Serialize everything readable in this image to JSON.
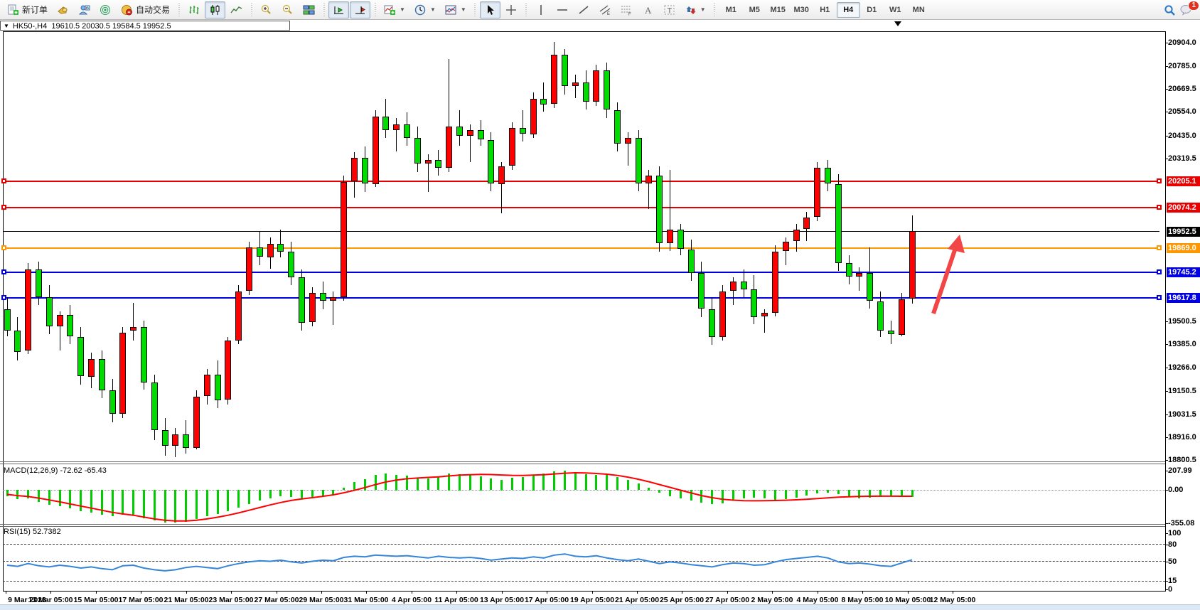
{
  "toolbar": {
    "new_order_label": "新订单",
    "autotrading_label": "自动交易",
    "timeframes": [
      "M1",
      "M5",
      "M15",
      "M30",
      "H1",
      "H4",
      "D1",
      "W1",
      "MN"
    ],
    "active_timeframe": "H4",
    "notification_count": "1"
  },
  "chart_header": {
    "symbol_period": "HK50-,H4",
    "ohlc_text": "19610.5 20030.5 19584.5 19952.5"
  },
  "indicators": {
    "macd_label": "MACD(12,26,9) -72.62 -65.43",
    "rsi_label": "RSI(15) 52.7382"
  },
  "colors": {
    "bull": "#ff0000",
    "bear": "#00dc00",
    "macd_hist": "#00cc00",
    "macd_signal": "#ff0000",
    "rsi_line": "#3585d8",
    "arrow": "#f24545",
    "current_price_line": "#000000"
  },
  "chart_data": {
    "type": "candlestick",
    "symbol": "HK50-",
    "period": "H4",
    "last_bar": {
      "open": 19610.5,
      "high": 20030.5,
      "low": 19584.5,
      "close": 19952.5
    },
    "current_price": 19952.5,
    "current_price_label": "19952.5",
    "price_axis_ticks": [
      {
        "v": 20904.0,
        "t": "20904.0"
      },
      {
        "v": 20785.0,
        "t": "20785.0"
      },
      {
        "v": 20669.5,
        "t": "20669.5"
      },
      {
        "v": 20554.0,
        "t": "20554.0"
      },
      {
        "v": 20435.0,
        "t": "20435.0"
      },
      {
        "v": 20319.5,
        "t": "20319.5"
      },
      {
        "v": 19500.5,
        "t": "19500.5"
      },
      {
        "v": 19385.0,
        "t": "19385.0"
      },
      {
        "v": 19266.0,
        "t": "19266.0"
      },
      {
        "v": 19150.5,
        "t": "19150.5"
      },
      {
        "v": 19031.5,
        "t": "19031.5"
      },
      {
        "v": 18916.0,
        "t": "18916.0"
      },
      {
        "v": 18800.5,
        "t": "18800.5"
      }
    ],
    "horizontal_lines": [
      {
        "value": 20205.1,
        "label": "20205.1",
        "color": "#e80000"
      },
      {
        "value": 20074.2,
        "label": "20074.2",
        "color": "#e80000"
      },
      {
        "value": 19869.0,
        "label": "19869.0",
        "color": "#ff9800"
      },
      {
        "value": 19745.2,
        "label": "19745.2",
        "color": "#0000e0"
      },
      {
        "value": 19617.8,
        "label": "19617.8",
        "color": "#0000e0"
      }
    ],
    "time_axis_labels": [
      "9 Mar 2023",
      "13 Mar 05:00",
      "15 Mar 05:00",
      "17 Mar 05:00",
      "21 Mar 05:00",
      "23 Mar 05:00",
      "27 Mar 05:00",
      "29 Mar 05:00",
      "31 Mar 05:00",
      "4 Apr 05:00",
      "11 Apr 05:00",
      "13 Apr 05:00",
      "17 Apr 05:00",
      "19 Apr 05:00",
      "21 Apr 05:00",
      "25 Apr 05:00",
      "27 Apr 05:00",
      "2 May 05:00",
      "4 May 05:00",
      "8 May 05:00",
      "10 May 05:00",
      "12 May 05:00"
    ],
    "candles_ohlc": [
      [
        19560,
        19620,
        19420,
        19450
      ],
      [
        19450,
        19520,
        19300,
        19340
      ],
      [
        19350,
        19790,
        19330,
        19760
      ],
      [
        19760,
        19800,
        19580,
        19620
      ],
      [
        19620,
        19680,
        19430,
        19470
      ],
      [
        19470,
        19550,
        19350,
        19530
      ],
      [
        19530,
        19580,
        19380,
        19420
      ],
      [
        19420,
        19470,
        19180,
        19220
      ],
      [
        19220,
        19340,
        19160,
        19310
      ],
      [
        19310,
        19350,
        19110,
        19150
      ],
      [
        19150,
        19210,
        18990,
        19030
      ],
      [
        19030,
        19470,
        19010,
        19440
      ],
      [
        19450,
        19590,
        19400,
        19470
      ],
      [
        19470,
        19500,
        19150,
        19190
      ],
      [
        19190,
        19230,
        18900,
        18950
      ],
      [
        18950,
        19010,
        18820,
        18870
      ],
      [
        18870,
        18960,
        18810,
        18930
      ],
      [
        18930,
        19000,
        18830,
        18860
      ],
      [
        18860,
        19150,
        18850,
        19120
      ],
      [
        19120,
        19260,
        19080,
        19230
      ],
      [
        19230,
        19300,
        19060,
        19100
      ],
      [
        19100,
        19420,
        19080,
        19400
      ],
      [
        19400,
        19680,
        19380,
        19650
      ],
      [
        19650,
        19900,
        19630,
        19870
      ],
      [
        19870,
        19950,
        19780,
        19820
      ],
      [
        19820,
        19920,
        19760,
        19890
      ],
      [
        19890,
        19960,
        19820,
        19850
      ],
      [
        19850,
        19900,
        19680,
        19720
      ],
      [
        19720,
        19760,
        19450,
        19490
      ],
      [
        19490,
        19670,
        19470,
        19640
      ],
      [
        19640,
        19700,
        19560,
        19600
      ],
      [
        19600,
        19650,
        19480,
        19620
      ],
      [
        19620,
        20230,
        19600,
        20200
      ],
      [
        20200,
        20350,
        20120,
        20320
      ],
      [
        20320,
        20380,
        20150,
        20190
      ],
      [
        20190,
        20560,
        20170,
        20530
      ],
      [
        20530,
        20620,
        20420,
        20460
      ],
      [
        20460,
        20520,
        20350,
        20490
      ],
      [
        20490,
        20550,
        20380,
        20420
      ],
      [
        20420,
        20480,
        20250,
        20290
      ],
      [
        20290,
        20340,
        20150,
        20310
      ],
      [
        20310,
        20360,
        20230,
        20270
      ],
      [
        20270,
        20820,
        20250,
        20480
      ],
      [
        20480,
        20560,
        20380,
        20430
      ],
      [
        20430,
        20490,
        20300,
        20460
      ],
      [
        20460,
        20510,
        20380,
        20410
      ],
      [
        20410,
        20450,
        20150,
        20190
      ],
      [
        20190,
        20300,
        20040,
        20280
      ],
      [
        20280,
        20500,
        20260,
        20470
      ],
      [
        20470,
        20560,
        20400,
        20440
      ],
      [
        20440,
        20650,
        20420,
        20620
      ],
      [
        20620,
        20700,
        20550,
        20590
      ],
      [
        20590,
        20904,
        20570,
        20840
      ],
      [
        20840,
        20870,
        20640,
        20680
      ],
      [
        20680,
        20740,
        20620,
        20700
      ],
      [
        20700,
        20760,
        20560,
        20600
      ],
      [
        20600,
        20790,
        20580,
        20760
      ],
      [
        20760,
        20800,
        20520,
        20560
      ],
      [
        20560,
        20600,
        20350,
        20390
      ],
      [
        20390,
        20450,
        20280,
        20420
      ],
      [
        20420,
        20460,
        20150,
        20190
      ],
      [
        20190,
        20260,
        20060,
        20230
      ],
      [
        20230,
        20280,
        19850,
        19890
      ],
      [
        19890,
        20260,
        19850,
        19960
      ],
      [
        19960,
        19990,
        19830,
        19860
      ],
      [
        19860,
        19910,
        19700,
        19740
      ],
      [
        19740,
        19800,
        19520,
        19560
      ],
      [
        19560,
        19620,
        19380,
        19420
      ],
      [
        19420,
        19680,
        19400,
        19650
      ],
      [
        19650,
        19720,
        19580,
        19700
      ],
      [
        19700,
        19760,
        19620,
        19660
      ],
      [
        19660,
        19730,
        19480,
        19520
      ],
      [
        19520,
        19560,
        19440,
        19540
      ],
      [
        19540,
        19880,
        19520,
        19850
      ],
      [
        19850,
        19920,
        19780,
        19900
      ],
      [
        19900,
        19990,
        19850,
        19960
      ],
      [
        19960,
        20050,
        19900,
        20020
      ],
      [
        20020,
        20300,
        20000,
        20270
      ],
      [
        20270,
        20310,
        20150,
        20190
      ],
      [
        20190,
        20240,
        19750,
        19790
      ],
      [
        19790,
        19830,
        19680,
        19720
      ],
      [
        19720,
        19770,
        19650,
        19740
      ],
      [
        19740,
        19870,
        19560,
        19600
      ],
      [
        19600,
        19650,
        19420,
        19450
      ],
      [
        19450,
        19500,
        19380,
        19430
      ],
      [
        19430,
        19640,
        19420,
        19610
      ],
      [
        19610.5,
        20030.5,
        19584.5,
        19952.5
      ]
    ],
    "macd": {
      "params": "MACD(12,26,9)",
      "value": -72.62,
      "signal_value": -65.43,
      "axis_ticks": [
        {
          "v": 207.99,
          "t": "207.99"
        },
        {
          "v": 0,
          "t": "0.00"
        },
        {
          "v": -355.08,
          "t": "-355.08"
        }
      ],
      "hist": [
        -70,
        -100,
        -90,
        -130,
        -160,
        -175,
        -195,
        -225,
        -240,
        -265,
        -285,
        -265,
        -275,
        -305,
        -330,
        -350,
        -352,
        -340,
        -315,
        -285,
        -262,
        -230,
        -192,
        -150,
        -115,
        -88,
        -70,
        -78,
        -95,
        -80,
        -65,
        -50,
        25,
        85,
        120,
        160,
        175,
        165,
        152,
        135,
        122,
        145,
        180,
        172,
        162,
        150,
        122,
        112,
        132,
        142,
        165,
        175,
        205,
        207,
        192,
        172,
        162,
        168,
        140,
        108,
        72,
        28,
        -30,
        -70,
        -95,
        -112,
        -135,
        -155,
        -142,
        -118,
        -95,
        -85,
        -95,
        -108,
        -98,
        -80,
        -60,
        -40,
        -30,
        -45,
        -70,
        -90,
        -85,
        -75,
        -70,
        -68,
        -73
      ],
      "signal": [
        -45,
        -58,
        -68,
        -85,
        -105,
        -125,
        -148,
        -170,
        -192,
        -215,
        -238,
        -255,
        -268,
        -288,
        -308,
        -322,
        -330,
        -330,
        -322,
        -308,
        -290,
        -268,
        -243,
        -215,
        -186,
        -158,
        -132,
        -110,
        -94,
        -80,
        -66,
        -50,
        -28,
        -2,
        28,
        60,
        88,
        108,
        122,
        130,
        137,
        143,
        153,
        161,
        166,
        169,
        167,
        163,
        159,
        158,
        161,
        166,
        174,
        182,
        186,
        184,
        179,
        171,
        158,
        140,
        117,
        90,
        60,
        30,
        0,
        -30,
        -58,
        -80,
        -97,
        -107,
        -112,
        -114,
        -113,
        -111,
        -108,
        -103,
        -97,
        -90,
        -82,
        -75,
        -70,
        -67,
        -65,
        -64,
        -64,
        -65,
        -65
      ]
    },
    "rsi": {
      "params": "RSI(15)",
      "value": 52.7382,
      "axis_ticks": [
        {
          "v": 100,
          "t": "100"
        },
        {
          "v": 80,
          "t": "80"
        },
        {
          "v": 50,
          "t": "50"
        },
        {
          "v": 15,
          "t": "15"
        },
        {
          "v": 0,
          "t": "0"
        }
      ],
      "dashed_levels": [
        80,
        50,
        15
      ],
      "values": [
        43,
        41,
        46,
        42,
        40,
        43,
        41,
        38,
        40,
        37,
        35,
        42,
        43,
        38,
        35,
        33,
        35,
        39,
        41,
        39,
        37,
        42,
        46,
        49,
        51,
        50,
        52,
        49,
        47,
        50,
        52,
        51,
        57,
        59,
        58,
        61,
        60,
        59,
        60,
        58,
        56,
        59,
        57,
        56,
        57,
        55,
        52,
        54,
        56,
        55,
        58,
        56,
        61,
        63,
        59,
        58,
        60,
        56,
        53,
        51,
        54,
        50,
        46,
        49,
        47,
        44,
        42,
        40,
        44,
        47,
        46,
        43,
        44,
        49,
        53,
        55,
        57,
        59,
        56,
        49,
        46,
        47,
        45,
        42,
        41,
        47,
        52.7
      ]
    }
  }
}
